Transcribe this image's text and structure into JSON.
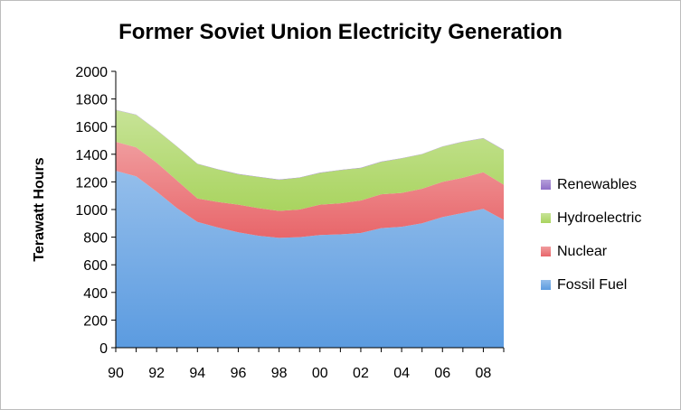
{
  "chart_data": {
    "type": "area",
    "stacked": true,
    "title": "Former Soviet Union Electricity Generation",
    "xlabel": "",
    "ylabel": "Terawatt Hours",
    "xlim": [
      1990,
      2009
    ],
    "ylim": [
      0,
      2000
    ],
    "yticks": [
      "0",
      "200",
      "400",
      "600",
      "800",
      "1000",
      "1200",
      "1400",
      "1600",
      "1800",
      "2000"
    ],
    "xticks": [
      {
        "x": 1990,
        "label": "90"
      },
      {
        "x": 1992,
        "label": "92"
      },
      {
        "x": 1994,
        "label": "94"
      },
      {
        "x": 1996,
        "label": "96"
      },
      {
        "x": 1998,
        "label": "98"
      },
      {
        "x": 2000,
        "label": "00"
      },
      {
        "x": 2002,
        "label": "02"
      },
      {
        "x": 2004,
        "label": "04"
      },
      {
        "x": 2006,
        "label": "06"
      },
      {
        "x": 2008,
        "label": "08"
      }
    ],
    "x": [
      1990,
      1991,
      1992,
      1993,
      1994,
      1995,
      1996,
      1997,
      1998,
      1999,
      2000,
      2001,
      2002,
      2003,
      2004,
      2005,
      2006,
      2007,
      2008,
      2009
    ],
    "series": [
      {
        "name": "Fossil Fuel",
        "color": "#5b9be0",
        "values": [
          1280,
          1240,
          1130,
          1010,
          910,
          870,
          835,
          810,
          795,
          800,
          815,
          820,
          830,
          865,
          875,
          900,
          945,
          975,
          1005,
          925
        ]
      },
      {
        "name": "Nuclear",
        "color": "#e8666a",
        "values": [
          210,
          210,
          210,
          200,
          170,
          185,
          200,
          200,
          195,
          200,
          220,
          225,
          235,
          245,
          245,
          250,
          255,
          255,
          265,
          255
        ]
      },
      {
        "name": "Hydroelectric",
        "color": "#a9d45f",
        "values": [
          230,
          235,
          235,
          245,
          250,
          235,
          220,
          225,
          225,
          230,
          230,
          240,
          235,
          235,
          250,
          250,
          255,
          260,
          245,
          250
        ]
      },
      {
        "name": "Renewables",
        "color": "#8f6fc7",
        "values": [
          2,
          2,
          2,
          2,
          2,
          2,
          2,
          2,
          2,
          2,
          2,
          2,
          2,
          2,
          2,
          2,
          2,
          2,
          2,
          2
        ]
      }
    ],
    "legend_position": "right",
    "legend_order": [
      "Renewables",
      "Hydroelectric",
      "Nuclear",
      "Fossil Fuel"
    ],
    "grid": false
  }
}
